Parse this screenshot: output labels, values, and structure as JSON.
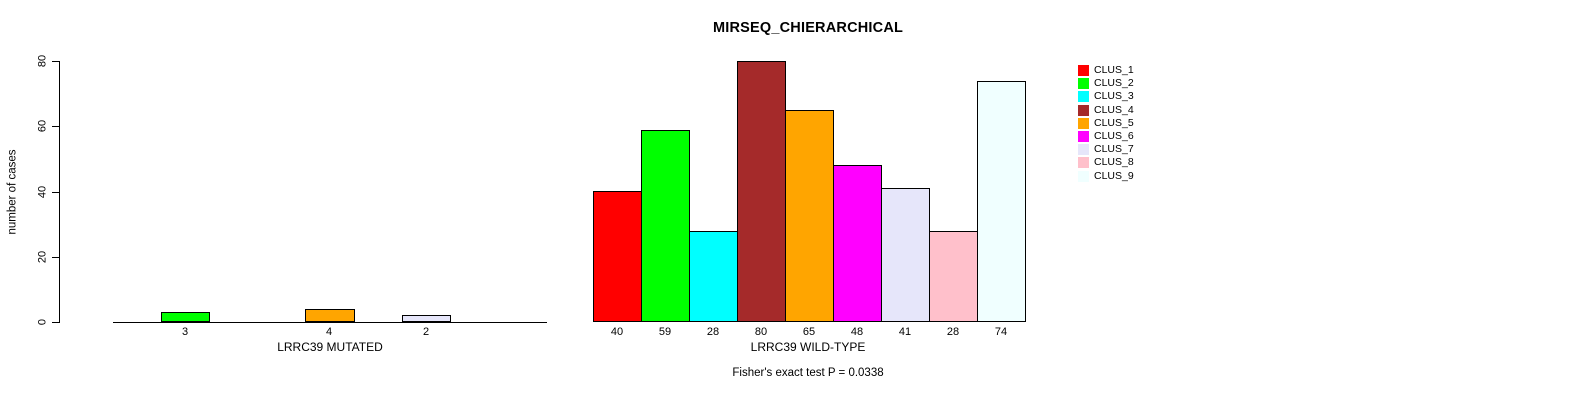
{
  "title": "MIRSEQ_CHIERARCHICAL",
  "footer": "Fisher's exact test P = 0.0338",
  "chart_data": {
    "type": "bar",
    "title": "MIRSEQ_CHIERARCHICAL",
    "ylabel": "number of cases",
    "ylim": [
      0,
      80
    ],
    "yticks": [
      0,
      20,
      40,
      60,
      80
    ],
    "grid": false,
    "legend_position": "right-outside",
    "categories": [
      "CLUS_1",
      "CLUS_2",
      "CLUS_3",
      "CLUS_4",
      "CLUS_5",
      "CLUS_6",
      "CLUS_7",
      "CLUS_8",
      "CLUS_9"
    ],
    "colors": [
      "#FF0000",
      "#00FF00",
      "#00FFFF",
      "#A52A2A",
      "#FFA500",
      "#FF00FF",
      "#E6E6FA",
      "#FFC0CB",
      "#F0FFFF"
    ],
    "bar_border_color": "#000000",
    "groups": [
      {
        "xlabel": "LRRC39 MUTATED",
        "values": [
          0,
          3,
          0,
          0,
          4,
          0,
          2,
          0,
          0
        ],
        "shown_value_labels": [
          "3",
          "4",
          "2"
        ],
        "has_axis_line": true
      },
      {
        "xlabel": "LRRC39 WILD-TYPE",
        "values": [
          40,
          59,
          28,
          80,
          65,
          48,
          41,
          28,
          74
        ],
        "shown_value_labels": [
          "40",
          "59",
          "28",
          "80",
          "65",
          "48",
          "41",
          "28",
          "74"
        ],
        "has_axis_line": false
      }
    ],
    "annotation": "Fisher's exact test P = 0.0338",
    "legend_items": [
      {
        "label": "CLUS_1",
        "color": "#FF0000"
      },
      {
        "label": "CLUS_2",
        "color": "#00FF00"
      },
      {
        "label": "CLUS_3",
        "color": "#00FFFF"
      },
      {
        "label": "CLUS_4",
        "color": "#A52A2A"
      },
      {
        "label": "CLUS_5",
        "color": "#FFA500"
      },
      {
        "label": "CLUS_6",
        "color": "#FF00FF"
      },
      {
        "label": "CLUS_7",
        "color": "#E6E6FA"
      },
      {
        "label": "CLUS_8",
        "color": "#FFC0CB"
      },
      {
        "label": "CLUS_9",
        "color": "#F0FFFF"
      }
    ]
  }
}
